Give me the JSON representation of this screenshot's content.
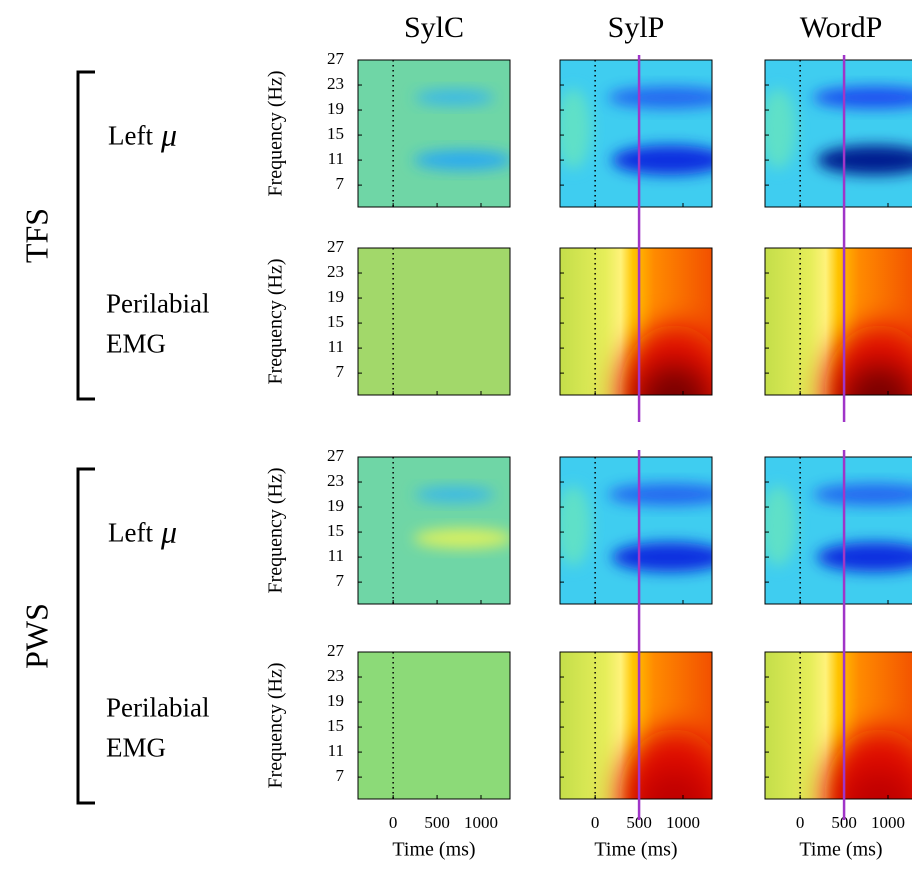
{
  "columns": [
    "SylC",
    "SylP",
    "WordP"
  ],
  "groups": [
    {
      "label": "TFS",
      "rows": [
        {
          "label": [
            "Left",
            "μ"
          ]
        },
        {
          "label": [
            "Perilabial",
            "EMG"
          ]
        }
      ]
    },
    {
      "label": "PWS",
      "rows": [
        {
          "label": [
            "Left",
            "μ"
          ]
        },
        {
          "label": [
            "Perilabial",
            "EMG"
          ]
        }
      ]
    }
  ],
  "y_axis": {
    "label": "Frequency (Hz)",
    "ticks": [
      27,
      23,
      19,
      15,
      11,
      7
    ]
  },
  "x_axis": {
    "label": "Time (ms)",
    "ticks": [
      0,
      500,
      1000
    ]
  }
}
